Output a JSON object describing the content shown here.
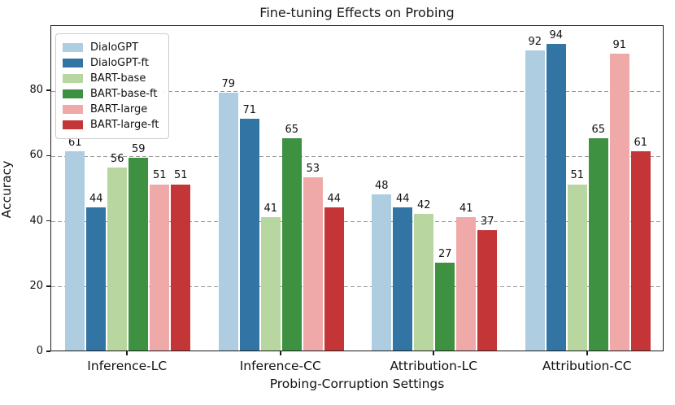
{
  "chart_data": {
    "type": "bar",
    "title": "Fine-tuning Effects on Probing",
    "xlabel": "Probing-Corruption Settings",
    "ylabel": "Accuracy",
    "categories": [
      "Inference-LC",
      "Inference-CC",
      "Attribution-LC",
      "Attribution-CC"
    ],
    "series": [
      {
        "name": "DialoGPT",
        "color": "#aecde1",
        "values": [
          61,
          79,
          48,
          92
        ]
      },
      {
        "name": "DialoGPT-ft",
        "color": "#3274a3",
        "values": [
          44,
          71,
          44,
          94
        ]
      },
      {
        "name": "BART-base",
        "color": "#b8d6a0",
        "values": [
          56,
          41,
          42,
          51
        ]
      },
      {
        "name": "BART-base-ft",
        "color": "#3e9140",
        "values": [
          59,
          65,
          27,
          65
        ]
      },
      {
        "name": "BART-large",
        "color": "#f0a9a9",
        "values": [
          51,
          53,
          41,
          91
        ]
      },
      {
        "name": "BART-large-ft",
        "color": "#c43537",
        "values": [
          51,
          44,
          37,
          61
        ]
      }
    ],
    "ylim": [
      0,
      100
    ],
    "yticks": [
      0,
      20,
      40,
      60,
      80
    ],
    "grid": "horizontal-dashed",
    "grid_color": "#999999",
    "legend_position": "upper-left",
    "bar_labels": true
  }
}
